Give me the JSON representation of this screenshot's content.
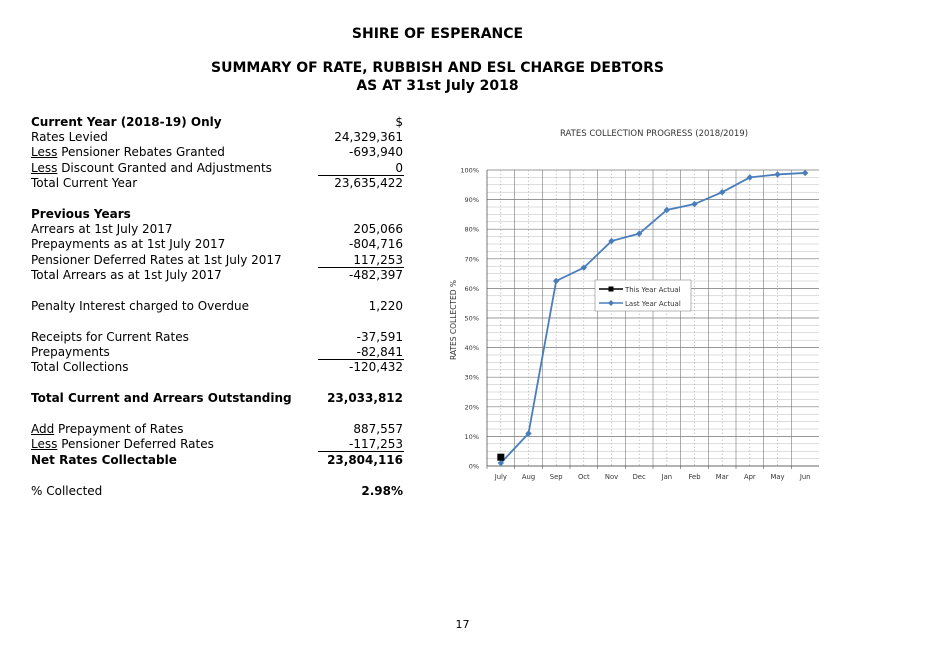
{
  "header": {
    "org": "SHIRE OF ESPERANCE",
    "title": "SUMMARY OF RATE, RUBBISH AND ESL CHARGE DEBTORS",
    "subtitle": "AS AT 31st July 2018"
  },
  "ledger": {
    "current_heading": "Current Year (2018-19) Only",
    "currency": "$",
    "rates_levied": {
      "label": "Rates Levied",
      "value": "24,329,361"
    },
    "pensioner_rebates": {
      "prefix": "Less",
      "label": " Pensioner Rebates Granted",
      "value": "-693,940"
    },
    "discount": {
      "prefix": "Less",
      "label": " Discount Granted and Adjustments",
      "value": "0"
    },
    "total_current": {
      "label": "Total Current Year",
      "value": "23,635,422"
    },
    "previous_heading": "Previous Years",
    "arrears": {
      "label": "Arrears at 1st July 2017",
      "value": "205,066"
    },
    "prepayments_july": {
      "label": "Prepayments as at 1st July 2017",
      "value": "-804,716"
    },
    "pensioner_deferred": {
      "label": "Pensioner Deferred Rates at 1st July 2017",
      "value": "117,253"
    },
    "total_arrears": {
      "label": "Total Arrears as at 1st July 2017",
      "value": "-482,397"
    },
    "penalty": {
      "label": "Penalty Interest charged to Overdue",
      "value": "1,220"
    },
    "receipts": {
      "label": "Receipts for Current Rates",
      "value": "-37,591"
    },
    "prepayments": {
      "label": "Prepayments",
      "value": "-82,841"
    },
    "total_collections": {
      "label": "Total Collections",
      "value": "-120,432"
    },
    "outstanding": {
      "label": "Total Current and Arrears Outstanding",
      "value": "23,033,812"
    },
    "add_prepayment": {
      "prefix": "Add",
      "label": " Prepayment of Rates",
      "value": "887,557"
    },
    "less_deferred": {
      "prefix": "Less",
      "label": " Pensioner Deferred Rates",
      "value": "-117,253"
    },
    "net_collectable": {
      "label": "Net Rates Collectable",
      "value": "23,804,116"
    },
    "pct_collected": {
      "label": "% Collected",
      "value": "2.98%"
    }
  },
  "chart_data": {
    "type": "line",
    "title": "RATES COLLECTION PROGRESS (2018/2019)",
    "xlabel": "",
    "ylabel": "RATES COLLECTED %",
    "categories": [
      "July",
      "Aug",
      "Sep",
      "Oct",
      "Nov",
      "Dec",
      "Jan",
      "Feb",
      "Mar",
      "Apr",
      "May",
      "Jun"
    ],
    "ylim": [
      0,
      100
    ],
    "yticks": [
      0,
      10,
      20,
      30,
      40,
      50,
      60,
      70,
      80,
      90,
      100
    ],
    "ytick_labels": [
      "0%",
      "10%",
      "20%",
      "30%",
      "40%",
      "50%",
      "60%",
      "70%",
      "80%",
      "90%",
      "100%"
    ],
    "grid": true,
    "legend_position": "center-right",
    "series": [
      {
        "name": "This Year Actual",
        "color": "#000000",
        "marker": "square",
        "values": [
          2.98,
          null,
          null,
          null,
          null,
          null,
          null,
          null,
          null,
          null,
          null,
          null
        ]
      },
      {
        "name": "Last Year Actual",
        "color": "#4a7ebb",
        "marker": "diamond",
        "values": [
          1.0,
          11.0,
          62.5,
          67.0,
          76.0,
          78.5,
          86.5,
          88.5,
          92.5,
          97.5,
          98.5,
          99.0
        ]
      }
    ]
  },
  "footer": {
    "page_number": "17"
  }
}
